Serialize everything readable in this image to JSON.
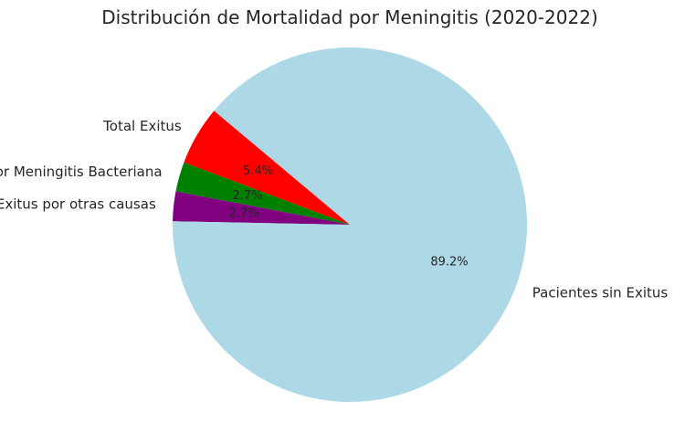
{
  "chart_data": {
    "type": "pie",
    "title": "Distribución de Mortalidad por Meningitis (2020-2022)",
    "start_angle_deg": 140,
    "direction": "counterclockwise",
    "slices": [
      {
        "label": "Total Exitus",
        "value": 5.4,
        "pct_label": "5.4%",
        "color": "#ff0000"
      },
      {
        "label": "Exitus por Meningitis Bacteriana",
        "value": 2.7,
        "pct_label": "2.7%",
        "color": "#008000"
      },
      {
        "label": "Exitus por otras causas",
        "value": 2.7,
        "pct_label": "2.7%",
        "color": "#800080"
      },
      {
        "label": "Pacientes sin Exitus",
        "value": 89.2,
        "pct_label": "89.2%",
        "color": "#add8e6"
      }
    ]
  }
}
